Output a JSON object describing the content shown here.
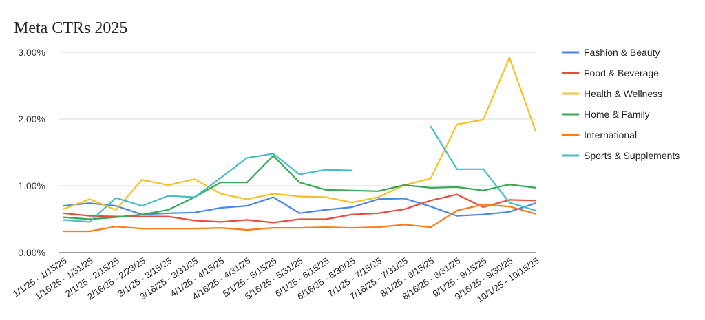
{
  "chart_data": {
    "type": "line",
    "title": "Meta CTRs 2025",
    "xlabel": "",
    "ylabel": "",
    "ylim": [
      0,
      3
    ],
    "yticks": [
      "0.00%",
      "1.00%",
      "2.00%",
      "3.00%"
    ],
    "grid": true,
    "legend": "right",
    "categories": [
      "1/1/25 - 1/15/25",
      "1/16/25 - 1/31/25",
      "2/1/25 - 2/15/25",
      "2/16/25 - 2/28/25",
      "3/1/25 - 3/15/25",
      "3/16/25 - 3/31/25",
      "4/1/25 - 4/15/25",
      "4/16/25 - 4/31/25",
      "5/1/25 - 5/15/25",
      "5/16/25 - 5/31/25",
      "6/1/25 - 6/15/25",
      "6/16/25 - 6/30/25",
      "7/1/25 - 7/15/25",
      "7/16/25 - 7/31/25",
      "8/1/25 - 8/15/25",
      "8/16/25 - 8/31/25",
      "9/1/25 - 9/15/25",
      "9/16/25 - 9/30/25",
      "10/1/25 - 10/15/25"
    ],
    "series": [
      {
        "name": "Fashion & Beauty",
        "color": "#4a86e8",
        "values": [
          0.7,
          0.74,
          0.7,
          0.57,
          0.59,
          0.6,
          0.67,
          0.7,
          0.83,
          0.59,
          0.64,
          0.68,
          0.8,
          0.81,
          0.69,
          0.55,
          0.57,
          0.61,
          0.74
        ]
      },
      {
        "name": "Food & Beverage",
        "color": "#e74c3c",
        "values": [
          0.59,
          0.55,
          0.54,
          0.54,
          0.54,
          0.48,
          0.46,
          0.49,
          0.45,
          0.5,
          0.5,
          0.57,
          0.59,
          0.65,
          0.78,
          0.87,
          0.68,
          0.79,
          0.78
        ]
      },
      {
        "name": "Health & Wellness",
        "color": "#f6c026",
        "values": [
          0.65,
          0.8,
          0.64,
          1.09,
          1.01,
          1.1,
          0.88,
          0.8,
          0.88,
          0.84,
          0.83,
          0.75,
          0.83,
          1.01,
          1.11,
          1.92,
          1.99,
          2.92,
          1.82
        ]
      },
      {
        "name": "Home & Family",
        "color": "#34a853",
        "values": [
          0.53,
          0.5,
          0.53,
          0.57,
          0.64,
          0.83,
          1.05,
          1.05,
          1.45,
          1.05,
          0.94,
          0.93,
          0.92,
          1.01,
          0.97,
          0.98,
          0.93,
          1.02,
          0.97
        ]
      },
      {
        "name": "International",
        "color": "#fa7b17",
        "values": [
          0.32,
          0.32,
          0.39,
          0.36,
          0.36,
          0.36,
          0.37,
          0.34,
          0.37,
          0.37,
          0.38,
          0.37,
          0.38,
          0.42,
          0.38,
          0.63,
          0.72,
          0.69,
          0.58
        ]
      },
      {
        "name": "Sports & Supplements",
        "color": "#46bdc6",
        "values": [
          0.49,
          0.46,
          0.82,
          0.7,
          0.85,
          0.83,
          1.12,
          1.42,
          1.48,
          1.17,
          1.24,
          1.23,
          null,
          null,
          1.89,
          1.25,
          1.25,
          0.75,
          0.63
        ]
      }
    ]
  }
}
